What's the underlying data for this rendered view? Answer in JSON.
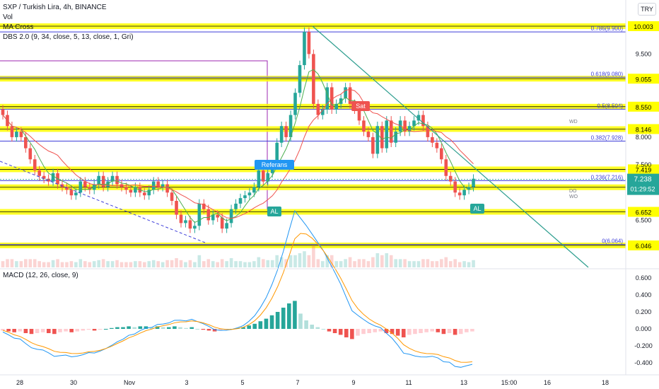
{
  "header": {
    "symbol_line": "SXP / Turkish Lira, 4h, BINANCE",
    "vol_label": "Vol",
    "ma_label": "MA Cross",
    "dbs_label": "DBS 2.0 (9, 34, close, 5, 13, close, 1, Gri)",
    "currency_button": "TRY"
  },
  "macd_legend": "MACD (12, 26, close, 9)",
  "colors": {
    "up": "#26a69a",
    "down": "#ef5350",
    "fib_line": "#3f3fd9",
    "yellow_band": "#ffff00",
    "trendline": "#2e9e8f",
    "ma_fast": "#4caf50",
    "ma_slow": "#ef5350",
    "macd_line": "#2196f3",
    "signal_line": "#ff9800",
    "purple": "#9c27b0"
  },
  "chart_data": [
    {
      "type": "line",
      "name": "price",
      "y_ticks": [
        "9.500",
        "8.000",
        "7.500",
        "6.500"
      ],
      "x_ticks": [
        "28",
        "30",
        "Nov",
        "3",
        "5",
        "7",
        "9",
        "11",
        "13",
        "15:00",
        "16",
        "18"
      ],
      "fib_levels": [
        {
          "label": "0.786(9.900)",
          "value": 9.9
        },
        {
          "label": "0.618(9.080)",
          "value": 9.08
        },
        {
          "label": "0.5(8.504)",
          "value": 8.504
        },
        {
          "label": "0.382(7.928)",
          "value": 7.928
        },
        {
          "label": "0.236(7.216)",
          "value": 7.216
        },
        {
          "label": "0(6.064)",
          "value": 6.064
        }
      ],
      "level_labels": [
        {
          "text": "10.003",
          "value": 10.003
        },
        {
          "text": "9.055",
          "value": 9.055
        },
        {
          "text": "8.550",
          "value": 8.55
        },
        {
          "text": "8.146",
          "value": 8.146
        },
        {
          "text": "7.419",
          "value": 7.419
        },
        {
          "text": "7.096",
          "value": 7.096
        },
        {
          "text": "6.652",
          "value": 6.652
        },
        {
          "text": "6.046",
          "value": 6.046
        }
      ],
      "current_price": "7.238",
      "countdown": "01:29:52",
      "signals": [
        {
          "text": "Referans",
          "kind": "blue"
        },
        {
          "text": "Sat",
          "kind": "sell"
        },
        {
          "text": "AL",
          "kind": "buy"
        },
        {
          "text": "AL",
          "kind": "buy"
        }
      ],
      "small_labels": [
        "WD",
        "DO",
        "WO"
      ],
      "series": [
        {
          "name": "close",
          "values": [
            8.4,
            8.2,
            8.0,
            8.1,
            8.0,
            7.8,
            7.6,
            7.4,
            7.3,
            7.25,
            7.2,
            7.35,
            7.15,
            7.1,
            7.05,
            6.95,
            7.0,
            7.2,
            7.1,
            7.05,
            7.15,
            7.3,
            7.1,
            7.2,
            7.3,
            7.15,
            7.1,
            7.05,
            7.0,
            7.1,
            7.0,
            6.95,
            7.05,
            7.2,
            7.1,
            7.15,
            7.0,
            6.85,
            6.6,
            6.45,
            6.5,
            6.35,
            6.4,
            6.8,
            6.7,
            6.5,
            6.6,
            6.55,
            6.35,
            6.45,
            6.7,
            6.8,
            6.9,
            6.95,
            7.0,
            7.1,
            7.4,
            7.2,
            7.35,
            7.5,
            7.9,
            8.2,
            8.0,
            8.4,
            8.8,
            9.3,
            9.9,
            9.5,
            8.6,
            8.4,
            8.5,
            8.9,
            8.5,
            8.6,
            8.7,
            8.9,
            8.6,
            8.5,
            8.3,
            8.1,
            8.0,
            7.7,
            8.2,
            7.8,
            8.3,
            7.9,
            8.1,
            8.3,
            8.1,
            8.2,
            8.3,
            8.4,
            8.2,
            8.0,
            7.9,
            7.8,
            7.6,
            7.3,
            7.2,
            7.0,
            6.95,
            7.05,
            7.1,
            7.25
          ]
        }
      ]
    },
    {
      "type": "line",
      "name": "MACD",
      "y_ticks": [
        "0.600",
        "0.400",
        "0.200",
        "0.000",
        "-0.200",
        "-0.400"
      ],
      "series": [
        {
          "name": "histogram",
          "values": [
            -0.02,
            -0.03,
            -0.04,
            -0.03,
            -0.05,
            -0.06,
            -0.05,
            -0.04,
            -0.05,
            -0.06,
            -0.04,
            -0.03,
            -0.04,
            -0.03,
            -0.02,
            -0.01,
            -0.02,
            -0.01,
            0.0,
            0.01,
            0.02,
            0.02,
            0.03,
            0.02,
            0.03,
            0.03,
            0.02,
            0.03,
            0.02,
            0.02,
            0.03,
            0.02,
            0.01,
            0.02,
            0.0,
            -0.01,
            -0.02,
            -0.03,
            -0.02,
            -0.01,
            0.0,
            0.01,
            0.02,
            0.04,
            0.06,
            0.09,
            0.12,
            0.16,
            0.2,
            0.25,
            0.3,
            0.33,
            0.18,
            0.1,
            0.05,
            0.02,
            0.0,
            -0.03,
            -0.05,
            -0.07,
            -0.1,
            -0.12,
            -0.08,
            -0.06,
            -0.05,
            -0.04,
            -0.03,
            -0.05,
            -0.06,
            -0.08,
            -0.1,
            -0.07,
            -0.06,
            -0.05,
            -0.04,
            -0.03,
            -0.04,
            -0.06,
            -0.05,
            -0.07,
            -0.06,
            -0.04,
            -0.03
          ]
        }
      ]
    }
  ]
}
